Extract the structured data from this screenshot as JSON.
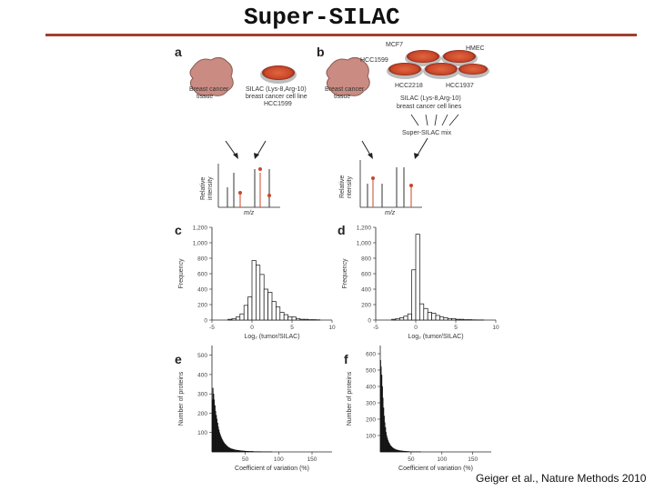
{
  "slide": {
    "title": "Super-SILAC",
    "citation": "Geiger et al., Nature Methods 2010"
  },
  "figure": {
    "panel_a": {
      "letter": "a",
      "tissue_label": [
        "Breast cancer",
        "tissue"
      ],
      "cellline_label": [
        "SILAC (Lys-8,Arg-10)",
        "breast cancer cell line",
        "HCC1599"
      ],
      "spectrum_ylabel": [
        "Relative",
        "intensity"
      ],
      "spectrum_xlabel": "m/z"
    },
    "panel_b": {
      "letter": "b",
      "tissue_label": [
        "Breast cancer",
        "tissue"
      ],
      "cell_lines": [
        "MCF7",
        "HMEC",
        "HCC1599",
        "HCC2218",
        "HCC1937"
      ],
      "cellline_label": [
        "SILAC (Lys-8,Arg-10)",
        "breast cancer cell lines"
      ],
      "mix_label": "Super-SILAC mix",
      "spectrum_ylabel": [
        "Relative",
        "ntensity"
      ],
      "spectrum_xlabel": "m/z"
    },
    "panel_c": {
      "letter": "c",
      "ylabel": "Frequency",
      "xlabel": "Log₂ (tumor/SILAC)",
      "yticks": [
        "0",
        "200",
        "400",
        "600",
        "800",
        "1,000",
        "1,200"
      ],
      "xticks": [
        "-5",
        "0",
        "5",
        "10"
      ]
    },
    "panel_d": {
      "letter": "d",
      "ylabel": "Frequency",
      "xlabel": "Log₂ (tumor/SILAC)",
      "yticks": [
        "0",
        "200",
        "400",
        "600",
        "800",
        "1,000",
        "1,200"
      ],
      "xticks": [
        "-5",
        "0",
        "5",
        "10"
      ]
    },
    "panel_e": {
      "letter": "e",
      "ylabel": "Number of proteins",
      "xlabel": "Coefficient of variation (%)",
      "yticks": [
        "100",
        "200",
        "300",
        "400",
        "500"
      ],
      "xticks": [
        "50",
        "100",
        "150"
      ]
    },
    "panel_f": {
      "letter": "f",
      "ylabel": "Number of proteins",
      "xlabel": "Coefficient of variation (%)",
      "yticks": [
        "100",
        "200",
        "300",
        "400",
        "500",
        "600"
      ],
      "xticks": [
        "50",
        "100",
        "150"
      ]
    }
  },
  "chart_data": [
    {
      "type": "bar",
      "panel": "c",
      "xlabel": "Log₂ (tumor/SILAC)",
      "ylabel": "Frequency",
      "xlim": [
        -5,
        10
      ],
      "ylim": [
        0,
        1200
      ],
      "bin_width": 0.5,
      "x": [
        -3,
        -2.5,
        -2,
        -1.5,
        -1,
        -0.5,
        0,
        0.5,
        1,
        1.5,
        2,
        2.5,
        3,
        3.5,
        4,
        4.5,
        5,
        5.5,
        6,
        6.5,
        7,
        7.5,
        8
      ],
      "values": [
        10,
        20,
        40,
        80,
        190,
        300,
        770,
        710,
        590,
        400,
        360,
        240,
        170,
        100,
        70,
        40,
        40,
        20,
        10,
        10,
        5,
        5,
        3
      ]
    },
    {
      "type": "bar",
      "panel": "d",
      "xlabel": "Log₂ (tumor/SILAC)",
      "ylabel": "Frequency",
      "xlim": [
        -5,
        10
      ],
      "ylim": [
        0,
        1200
      ],
      "bin_width": 0.5,
      "x": [
        -3,
        -2.5,
        -2,
        -1.5,
        -1,
        -0.5,
        0,
        0.5,
        1,
        1.5,
        2,
        2.5,
        3,
        3.5,
        4,
        4.5,
        5,
        5.5,
        6,
        6.5,
        7,
        7.5,
        8
      ],
      "values": [
        10,
        20,
        30,
        50,
        80,
        650,
        1110,
        210,
        150,
        100,
        90,
        60,
        40,
        30,
        20,
        20,
        10,
        10,
        5,
        5,
        3,
        2,
        2
      ]
    },
    {
      "type": "bar",
      "panel": "e",
      "xlabel": "Coefficient of variation (%)",
      "ylabel": "Number of proteins",
      "xlim": [
        0,
        180
      ],
      "ylim": [
        0,
        550
      ],
      "bin_width": 1,
      "values": [
        270,
        330,
        300,
        270,
        240,
        210,
        190,
        170,
        150,
        130,
        115,
        100,
        90,
        80,
        72,
        64,
        58,
        52,
        46,
        42,
        38,
        34,
        31,
        28,
        25,
        23,
        21,
        19,
        17,
        16,
        15,
        14,
        13,
        12,
        11,
        10,
        10,
        9,
        9,
        8,
        8,
        7,
        7,
        6,
        6,
        6,
        5,
        5,
        5,
        5,
        4,
        4,
        4,
        4,
        4,
        3,
        3,
        3,
        3,
        3,
        3,
        3,
        2,
        2,
        2,
        2,
        2,
        2,
        2,
        2,
        2,
        2,
        2,
        1,
        1,
        1,
        1,
        1,
        1,
        1,
        1,
        1,
        1,
        1,
        1,
        1,
        1,
        1,
        1,
        1
      ]
    },
    {
      "type": "bar",
      "panel": "f",
      "xlabel": "Coefficient of variation (%)",
      "ylabel": "Number of proteins",
      "xlim": [
        0,
        180
      ],
      "ylim": [
        0,
        650
      ],
      "bin_width": 1,
      "values": [
        560,
        520,
        470,
        400,
        330,
        270,
        220,
        180,
        150,
        120,
        100,
        85,
        72,
        62,
        54,
        47,
        41,
        36,
        32,
        28,
        25,
        22,
        20,
        18,
        16,
        14,
        13,
        12,
        11,
        10,
        9,
        8,
        8,
        7,
        7,
        6,
        6,
        5,
        5,
        5,
        4,
        4,
        4,
        3,
        3,
        3,
        3,
        2,
        2,
        2,
        2,
        2,
        2,
        2,
        2,
        1,
        1,
        1,
        1,
        1,
        1,
        1,
        1,
        1,
        1,
        1
      ]
    }
  ]
}
